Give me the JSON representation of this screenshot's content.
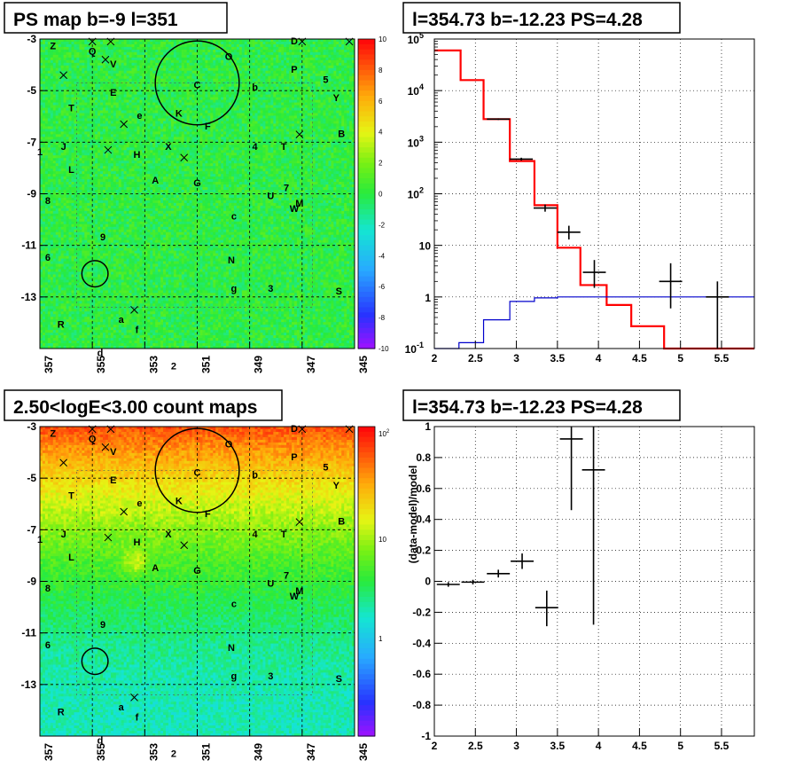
{
  "charts": [
    {
      "type": "heatmap",
      "title": "PS map b=-9 l=351",
      "x_ticks": [
        "357",
        "355",
        "353",
        "351",
        "349",
        "347",
        "345"
      ],
      "y_ticks": [
        "-3",
        "-5",
        "-7",
        "-9",
        "-11",
        "-13"
      ],
      "xlim": [
        357,
        345
      ],
      "ylim": [
        -15,
        -3
      ],
      "palette_ticks": [
        "10",
        "8",
        "6",
        "4",
        "2",
        "0",
        "-2",
        "-4",
        "-6",
        "-8",
        "-10"
      ],
      "palette_range": [
        -10,
        10
      ],
      "field_level": 0.5
    },
    {
      "type": "line",
      "title": "l=354.73 b=-12.23 PS=4.28",
      "xlim": [
        2,
        5.9
      ],
      "ylim": [
        0.1,
        100000
      ],
      "log_y": true,
      "x_ticks": [
        "2",
        "2.5",
        "3",
        "3.5",
        "4",
        "4.5",
        "5",
        "5.5"
      ],
      "y_ticks": [
        "10",
        "1",
        "10",
        "10",
        "10",
        "10",
        "1",
        "10"
      ],
      "y_tick_exps": [
        "5",
        "4",
        "3",
        "2",
        "",
        "",
        "",
        "-1"
      ],
      "series": [
        {
          "kind": "hist",
          "color": "#ff0000",
          "edges": [
            2,
            2.32,
            2.6,
            2.92,
            3.22,
            3.5,
            3.78,
            4.1,
            4.4,
            4.8,
            5.9
          ],
          "values": [
            60000,
            16000,
            2800,
            430,
            60,
            9,
            1.7,
            0.7,
            0.27,
            0.1
          ]
        },
        {
          "kind": "hist",
          "color": "#0000cc",
          "edges": [
            2,
            2.3,
            2.6,
            2.92,
            3.22,
            3.5,
            5.9
          ],
          "values": [
            0.1,
            0.13,
            0.36,
            0.82,
            0.96,
            1.0
          ]
        },
        {
          "kind": "points",
          "color": "#000000",
          "points": [
            {
              "x": 2.78,
              "y": 2800,
              "xerr": 0.14,
              "ylo": 2700,
              "yhi": 2900
            },
            {
              "x": 3.06,
              "y": 470,
              "xerr": 0.14,
              "ylo": 440,
              "yhi": 500
            },
            {
              "x": 3.35,
              "y": 53,
              "xerr": 0.14,
              "ylo": 45,
              "yhi": 62
            },
            {
              "x": 3.64,
              "y": 18,
              "xerr": 0.14,
              "ylo": 13,
              "yhi": 24
            },
            {
              "x": 3.95,
              "y": 3,
              "xerr": 0.14,
              "ylo": 1.5,
              "yhi": 5.2
            },
            {
              "x": 4.88,
              "y": 2,
              "xerr": 0.14,
              "ylo": 0.6,
              "yhi": 4.5
            },
            {
              "x": 5.45,
              "y": 1,
              "xerr": 0.14,
              "ylo": 0.1,
              "yhi": 2
            }
          ]
        }
      ]
    },
    {
      "type": "heatmap",
      "title": "2.50<logE<3.00 count maps",
      "x_ticks": [
        "357",
        "355",
        "353",
        "351",
        "349",
        "347",
        "345"
      ],
      "y_ticks": [
        "-3",
        "-5",
        "-7",
        "-9",
        "-11",
        "-13"
      ],
      "xlim": [
        357,
        345
      ],
      "ylim": [
        -15,
        -3
      ],
      "palette_ticks": [
        "10",
        "10",
        "1"
      ],
      "palette_tick_exps": [
        "2",
        "",
        ""
      ],
      "palette_range": [
        0.2,
        200
      ]
    },
    {
      "type": "scatter",
      "title": "l=354.73 b=-12.23 PS=4.28",
      "ylabel": "(data-model)/model",
      "xlim": [
        2,
        5.9
      ],
      "ylim": [
        -1,
        1
      ],
      "x_ticks": [
        "2",
        "2.5",
        "3",
        "3.5",
        "4",
        "4.5",
        "5",
        "5.5"
      ],
      "y_ticks": [
        "1",
        "0.8",
        "0.6",
        "0.4",
        "0.2",
        "0",
        "-0.2",
        "-0.4",
        "-0.6",
        "-0.8",
        "-1"
      ],
      "points": [
        {
          "x": 2.17,
          "y": -0.02,
          "xerr": 0.14,
          "ylo": -0.035,
          "yhi": -0.005
        },
        {
          "x": 2.47,
          "y": -0.005,
          "xerr": 0.14,
          "ylo": -0.02,
          "yhi": 0.01
        },
        {
          "x": 2.78,
          "y": 0.05,
          "xerr": 0.14,
          "ylo": 0.025,
          "yhi": 0.075
        },
        {
          "x": 3.07,
          "y": 0.13,
          "xerr": 0.14,
          "ylo": 0.08,
          "yhi": 0.18
        },
        {
          "x": 3.37,
          "y": -0.17,
          "xerr": 0.14,
          "ylo": -0.29,
          "yhi": -0.06
        },
        {
          "x": 3.67,
          "y": 0.92,
          "xerr": 0.14,
          "ylo": 0.46,
          "yhi": 1.0
        },
        {
          "x": 3.94,
          "y": 0.72,
          "xerr": 0.14,
          "ylo": -0.28,
          "yhi": 1.0
        }
      ]
    }
  ],
  "map_labels": [
    {
      "t": "Z",
      "l": 356.5,
      "b": -3.4
    },
    {
      "t": "Q",
      "l": 355.0,
      "b": -3.6
    },
    {
      "t": "V",
      "l": 354.2,
      "b": -4.1
    },
    {
      "t": "O",
      "l": 349.8,
      "b": -3.8
    },
    {
      "t": "D",
      "l": 347.3,
      "b": -3.2
    },
    {
      "t": "P",
      "l": 347.3,
      "b": -4.3
    },
    {
      "t": "5",
      "l": 346.1,
      "b": -4.7
    },
    {
      "t": "E",
      "l": 354.2,
      "b": -5.2
    },
    {
      "t": "C",
      "l": 351.0,
      "b": -4.9
    },
    {
      "t": "b",
      "l": 348.8,
      "b": -5.0
    },
    {
      "t": "Y",
      "l": 345.7,
      "b": -5.4
    },
    {
      "t": "T",
      "l": 355.8,
      "b": -5.8
    },
    {
      "t": "e",
      "l": 353.2,
      "b": -6.1
    },
    {
      "t": "K",
      "l": 351.7,
      "b": -6.0
    },
    {
      "t": "F",
      "l": 350.6,
      "b": -6.5
    },
    {
      "t": "B",
      "l": 345.5,
      "b": -6.8
    },
    {
      "t": "1",
      "l": 357.0,
      "b": -7.5
    },
    {
      "t": "J",
      "l": 356.1,
      "b": -7.3
    },
    {
      "t": "H",
      "l": 353.3,
      "b": -7.6
    },
    {
      "t": "X",
      "l": 352.1,
      "b": -7.3
    },
    {
      "t": "4",
      "l": 348.8,
      "b": -7.3
    },
    {
      "t": "T",
      "l": 347.7,
      "b": -7.3
    },
    {
      "t": "L",
      "l": 355.8,
      "b": -8.2
    },
    {
      "t": "A",
      "l": 352.6,
      "b": -8.6
    },
    {
      "t": "G",
      "l": 351.0,
      "b": -8.7
    },
    {
      "t": "7",
      "l": 347.6,
      "b": -8.9
    },
    {
      "t": "U",
      "l": 348.2,
      "b": -9.2
    },
    {
      "t": "M",
      "l": 347.1,
      "b": -9.5
    },
    {
      "t": "W",
      "l": 347.3,
      "b": -9.7
    },
    {
      "t": "8",
      "l": 356.7,
      "b": -9.4
    },
    {
      "t": "c",
      "l": 349.6,
      "b": -10.0
    },
    {
      "t": "9",
      "l": 354.6,
      "b": -10.8
    },
    {
      "t": "6",
      "l": 356.7,
      "b": -11.6
    },
    {
      "t": "N",
      "l": 349.7,
      "b": -11.7
    },
    {
      "t": "g",
      "l": 349.6,
      "b": -12.8
    },
    {
      "t": "3",
      "l": 348.2,
      "b": -12.8
    },
    {
      "t": "S",
      "l": 345.6,
      "b": -12.9
    },
    {
      "t": "a",
      "l": 353.9,
      "b": -14.0
    },
    {
      "t": "f",
      "l": 353.3,
      "b": -14.4
    },
    {
      "t": "R",
      "l": 356.2,
      "b": -14.2
    },
    {
      "t": "d",
      "l": 354.7,
      "b": -15.3
    },
    {
      "t": "2",
      "l": 351.9,
      "b": -15.8
    }
  ],
  "map_crosses": [
    {
      "l": 355.0,
      "b": -3.1
    },
    {
      "l": 354.3,
      "b": -3.1
    },
    {
      "l": 354.5,
      "b": -3.8
    },
    {
      "l": 356.1,
      "b": -4.4
    },
    {
      "l": 347.0,
      "b": -3.1
    },
    {
      "l": 345.2,
      "b": -3.1
    },
    {
      "l": 353.8,
      "b": -6.3
    },
    {
      "l": 354.4,
      "b": -7.3
    },
    {
      "l": 351.5,
      "b": -7.6
    },
    {
      "l": 347.1,
      "b": -6.7
    },
    {
      "l": 353.4,
      "b": -13.5
    }
  ],
  "map_circles": [
    {
      "l": 351.0,
      "b": -4.7,
      "r": 1.6
    },
    {
      "l": 354.9,
      "b": -12.1,
      "r": 0.5
    }
  ]
}
